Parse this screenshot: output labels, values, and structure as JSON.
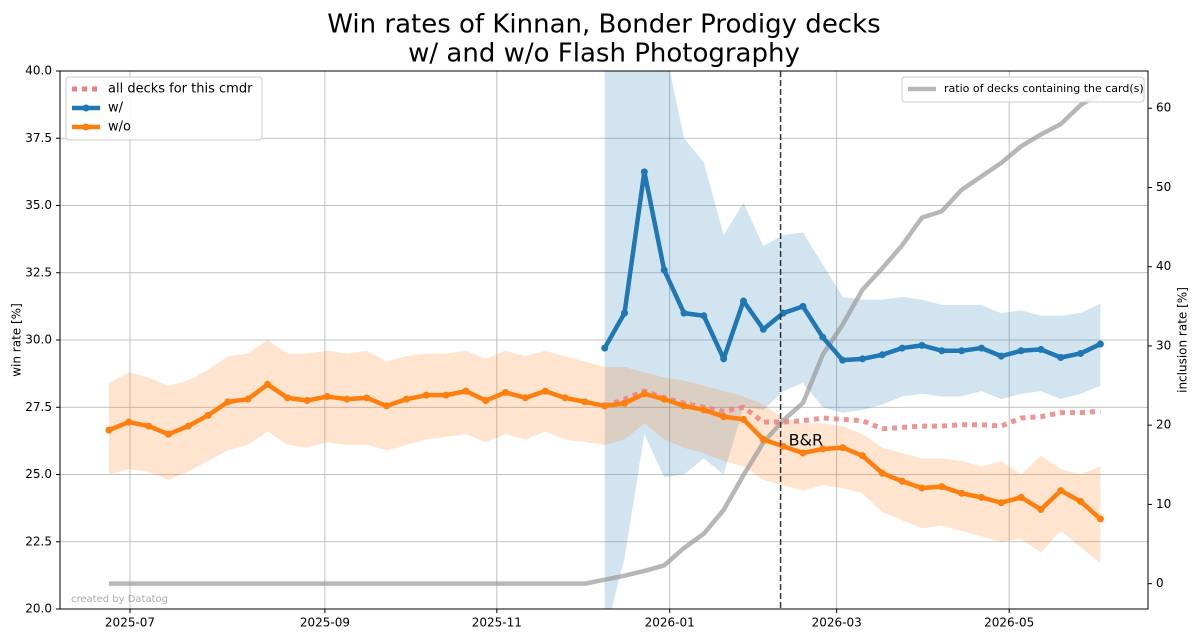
{
  "chart_data": {
    "type": "line",
    "title": [
      "Win rates of Kinnan, Bonder Prodigy decks",
      "w/ and w/o Flash Photography"
    ],
    "ylabel": "win rate [%]",
    "y2label": "inclusion rate [%]",
    "watermark": "created by Datatog",
    "x": [
      0,
      1,
      2,
      3,
      4,
      5,
      6,
      7,
      8,
      9,
      10,
      11,
      12,
      13,
      14,
      15,
      16,
      17,
      18,
      19,
      20,
      21,
      22,
      23,
      24,
      25,
      26,
      27,
      28,
      29,
      30,
      31,
      32,
      33,
      34,
      35,
      36,
      37,
      38,
      39,
      40,
      41,
      42,
      43,
      44,
      45,
      46,
      47,
      48,
      49,
      50
    ],
    "xlim": [
      -2.47,
      52.4
    ],
    "xticks": [
      {
        "value": 1.06,
        "label": "2025-07"
      },
      {
        "value": 10.89,
        "label": "2025-09"
      },
      {
        "value": 19.56,
        "label": "2025-11"
      },
      {
        "value": 28.28,
        "label": "2026-01"
      },
      {
        "value": 36.7,
        "label": "2026-03"
      },
      {
        "value": 45.4,
        "label": "2026-05"
      }
    ],
    "ylim": [
      20,
      40
    ],
    "yticks": [
      {
        "value": 20,
        "label": "20.0"
      },
      22.5,
      {
        "value": 25,
        "label": "25.0"
      },
      27.5,
      {
        "value": 30,
        "label": "30.0"
      },
      32.5,
      {
        "value": 35,
        "label": "35.0"
      },
      37.5,
      {
        "value": 40,
        "label": "40.0"
      }
    ],
    "y2lim": [
      -3.2,
      64.7
    ],
    "y2ticks": [
      0,
      10,
      20,
      30,
      40,
      50,
      60
    ],
    "grid": true,
    "legend": "upper left",
    "legend2": "upper right",
    "annotation": {
      "text": "B&R",
      "x": 33.87
    },
    "series": [
      {
        "name": "all decks for this cmdr",
        "color": "#f08080",
        "style": "dotted",
        "values": [
          null,
          null,
          null,
          null,
          null,
          null,
          null,
          null,
          null,
          null,
          null,
          null,
          null,
          null,
          null,
          null,
          null,
          null,
          null,
          null,
          null,
          null,
          null,
          null,
          null,
          27.55,
          27.8,
          28.1,
          27.85,
          27.65,
          27.5,
          27.35,
          27.5,
          26.95,
          26.95,
          27.0,
          27.1,
          27.05,
          27.0,
          26.7,
          26.75,
          26.8,
          26.8,
          26.85,
          26.85,
          26.8,
          27.1,
          27.15,
          27.3,
          27.3,
          27.35
        ]
      },
      {
        "name": "w/",
        "color": "#1f77b4",
        "style": "solid",
        "values": [
          null,
          null,
          null,
          null,
          null,
          null,
          null,
          null,
          null,
          null,
          null,
          null,
          null,
          null,
          null,
          null,
          null,
          null,
          null,
          null,
          null,
          null,
          null,
          null,
          null,
          29.7,
          31.0,
          36.25,
          32.6,
          31.0,
          30.9,
          29.3,
          31.45,
          30.4,
          31.0,
          31.25,
          30.1,
          29.25,
          29.3,
          29.45,
          29.7,
          29.8,
          29.6,
          29.6,
          29.7,
          29.4,
          29.6,
          29.65,
          29.35,
          29.5,
          29.85
        ],
        "upper": [
          null,
          null,
          null,
          null,
          null,
          null,
          null,
          null,
          null,
          null,
          null,
          null,
          null,
          null,
          null,
          null,
          null,
          null,
          null,
          null,
          null,
          null,
          null,
          null,
          null,
          42,
          42,
          42,
          41,
          37.5,
          36.6,
          33.9,
          35.1,
          33.5,
          33.9,
          34.0,
          32.8,
          31.6,
          31.5,
          31.5,
          31.6,
          31.5,
          31.3,
          31.3,
          31.3,
          31.0,
          31.1,
          30.9,
          30.9,
          31.0,
          31.35
        ],
        "lower": [
          null,
          null,
          null,
          null,
          null,
          null,
          null,
          null,
          null,
          null,
          null,
          null,
          null,
          null,
          null,
          null,
          null,
          null,
          null,
          null,
          null,
          null,
          null,
          null,
          null,
          19,
          21.9,
          26.5,
          24.9,
          25.0,
          25.6,
          25.0,
          27.5,
          27.4,
          28.1,
          28.4,
          27.5,
          27.3,
          27.4,
          27.6,
          27.9,
          28.0,
          27.9,
          27.9,
          28.1,
          27.8,
          28.0,
          28.1,
          27.8,
          28.0,
          28.3
        ]
      },
      {
        "name": "w/o",
        "color": "#ff7f0e",
        "style": "solid",
        "values": [
          26.65,
          26.95,
          26.8,
          26.5,
          26.8,
          27.2,
          27.7,
          27.8,
          28.35,
          27.85,
          27.75,
          27.9,
          27.8,
          27.85,
          27.55,
          27.8,
          27.95,
          27.95,
          28.1,
          27.75,
          28.05,
          27.85,
          28.1,
          27.85,
          27.7,
          27.55,
          27.65,
          28.0,
          27.8,
          27.55,
          27.4,
          27.15,
          27.05,
          26.3,
          26.05,
          25.8,
          25.95,
          26.0,
          25.7,
          25.05,
          24.75,
          24.5,
          24.55,
          24.3,
          24.15,
          23.95,
          24.15,
          23.7,
          24.4,
          24.0,
          23.35
        ],
        "upper": [
          28.4,
          28.8,
          28.6,
          28.3,
          28.5,
          28.9,
          29.4,
          29.5,
          30.0,
          29.5,
          29.5,
          29.6,
          29.5,
          29.6,
          29.2,
          29.4,
          29.5,
          29.5,
          29.6,
          29.3,
          29.6,
          29.4,
          29.6,
          29.4,
          29.2,
          29.0,
          29.0,
          28.8,
          28.6,
          28.5,
          28.3,
          28.1,
          27.9,
          27.6,
          27.1,
          26.9,
          26.9,
          26.8,
          26.5,
          26.0,
          25.8,
          25.6,
          25.6,
          25.5,
          25.3,
          25.5,
          25.0,
          25.7,
          25.2,
          25.0,
          25.3
        ],
        "lower": [
          25.0,
          25.2,
          25.1,
          24.8,
          25.1,
          25.5,
          25.9,
          26.1,
          26.6,
          26.1,
          26.0,
          26.2,
          26.1,
          26.1,
          25.9,
          26.1,
          26.3,
          26.4,
          26.5,
          26.2,
          26.5,
          26.3,
          26.6,
          26.3,
          26.2,
          26.1,
          26.3,
          26.9,
          26.3,
          26.0,
          25.8,
          25.5,
          25.3,
          24.8,
          24.6,
          24.4,
          24.6,
          24.5,
          24.3,
          23.6,
          23.3,
          23.0,
          23.1,
          22.9,
          22.7,
          22.5,
          22.6,
          22.1,
          22.9,
          22.3,
          21.7
        ]
      },
      {
        "name": "ratio of decks containing the card(s)",
        "color": "#999999",
        "style": "solid",
        "axis": "y2",
        "values": [
          0,
          0,
          0,
          0,
          0,
          0,
          0,
          0,
          0,
          0,
          0,
          0,
          0,
          0,
          0,
          0,
          0,
          0,
          0,
          0,
          0,
          0,
          0,
          0,
          0,
          0.5,
          1.0,
          1.6,
          2.3,
          4.5,
          6.3,
          9.3,
          13.7,
          17.8,
          20.6,
          22.8,
          28.9,
          32.7,
          37.1,
          39.8,
          42.7,
          46.2,
          47.0,
          49.7,
          51.4,
          53.1,
          55.2,
          56.7,
          58.0,
          60.4,
          61.9
        ]
      }
    ]
  }
}
